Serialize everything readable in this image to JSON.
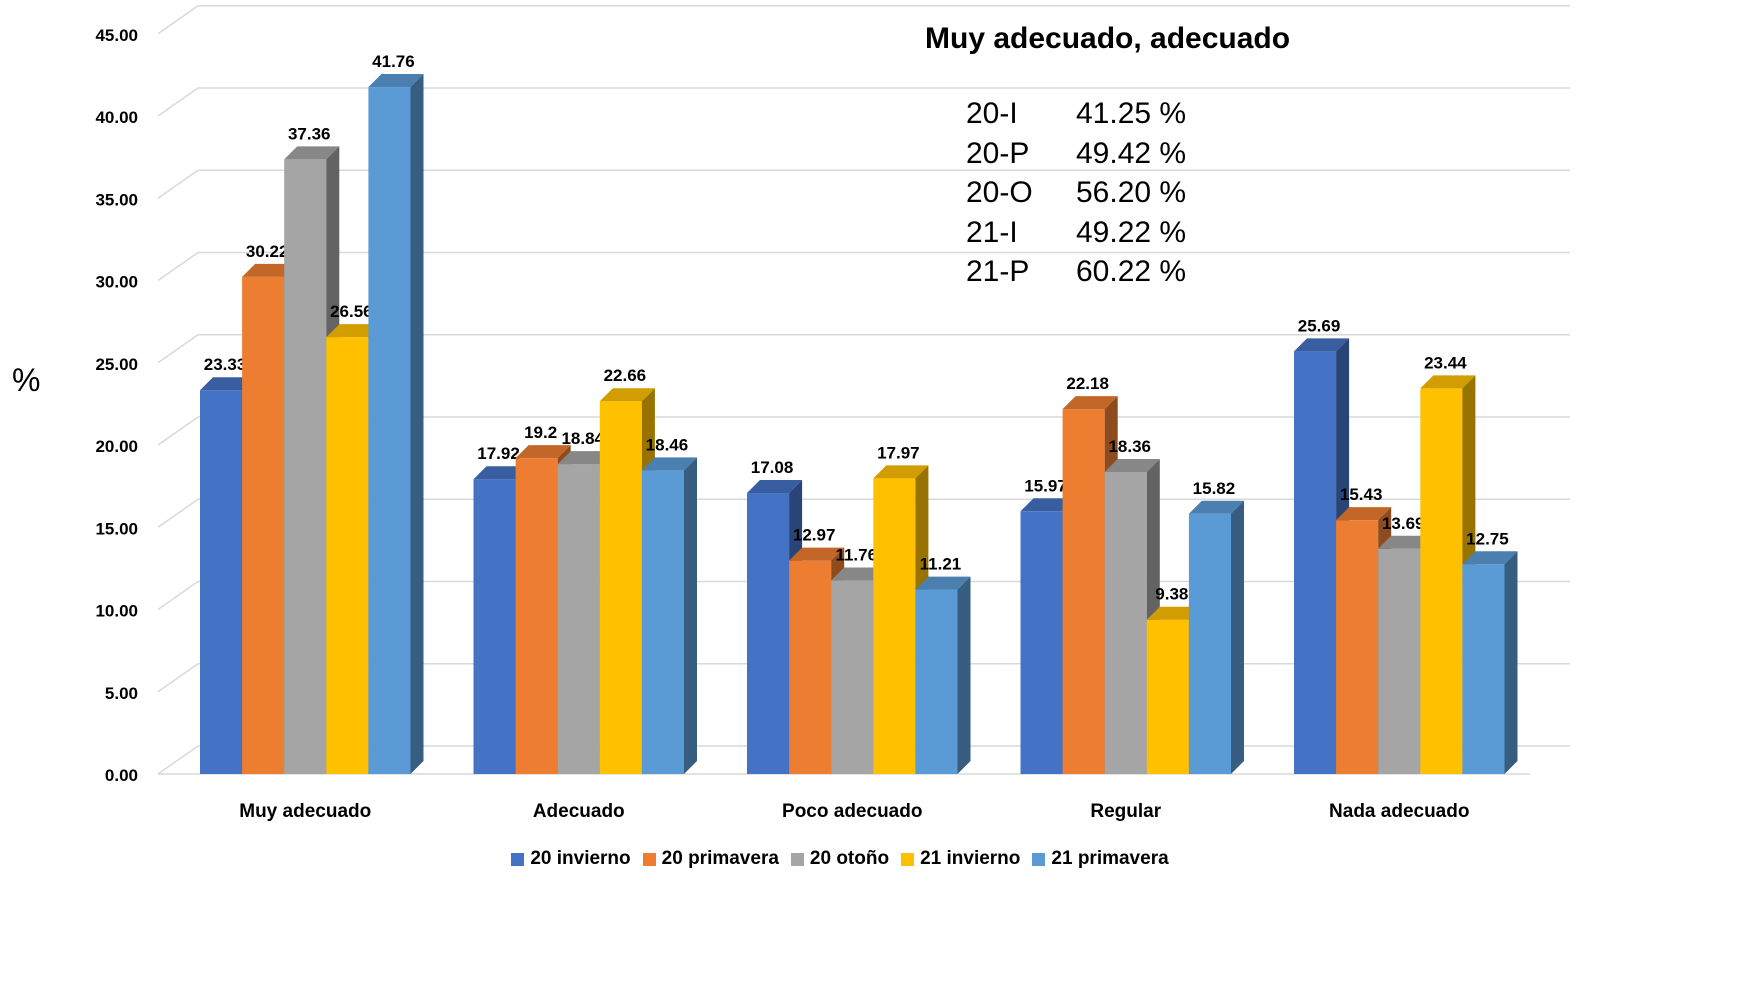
{
  "chart_data": {
    "type": "bar",
    "title": "",
    "xlabel": "",
    "ylabel": "%",
    "ylim": [
      0,
      45
    ],
    "ytick_labels": [
      "0.00",
      "5.00",
      "10.00",
      "15.00",
      "20.00",
      "25.00",
      "30.00",
      "35.00",
      "40.00",
      "45.00"
    ],
    "categories": [
      "Muy adecuado",
      "Adecuado",
      "Poco adecuado",
      "Regular",
      "Nada adecuado"
    ],
    "series": [
      {
        "name": "20 invierno",
        "color": "#4472C4",
        "values": [
          23.33,
          17.92,
          17.08,
          15.97,
          25.69
        ],
        "labels": [
          "23.33",
          "17.92",
          "17.08",
          "15.97",
          "25.69"
        ]
      },
      {
        "name": "20 primavera",
        "color": "#ED7D31",
        "values": [
          30.22,
          19.2,
          12.97,
          22.18,
          15.43
        ],
        "labels": [
          "30.22",
          "19.2",
          "12.97",
          "22.18",
          "15.43"
        ]
      },
      {
        "name": "20 otoño",
        "color": "#A5A5A5",
        "values": [
          37.36,
          18.84,
          11.76,
          18.36,
          13.69
        ],
        "labels": [
          "37.36",
          "18.84",
          "11.76",
          "18.36",
          "13.69"
        ]
      },
      {
        "name": "21 invierno",
        "color": "#FFC000",
        "values": [
          26.56,
          22.66,
          17.97,
          9.38,
          23.44
        ],
        "labels": [
          "26.56",
          "22.66",
          "17.97",
          "9.38",
          "23.44"
        ]
      },
      {
        "name": "21 primavera",
        "color": "#5B9BD5",
        "values": [
          41.76,
          18.46,
          11.21,
          15.82,
          12.75
        ],
        "labels": [
          "41.76",
          "18.46",
          "11.21",
          "15.82",
          "12.75"
        ]
      }
    ],
    "grid": true,
    "legend_position": "bottom",
    "style": "3d-clustered-column"
  },
  "annotation": {
    "title": "Muy adecuado, adecuado",
    "rows": [
      {
        "key": "20-I",
        "value": "41.25 %"
      },
      {
        "key": "20-P",
        "value": "49.42 %"
      },
      {
        "key": "20-O",
        "value": "56.20  %"
      },
      {
        "key": "21-I",
        "value": "49.22 %"
      },
      {
        "key": "21-P",
        "value": "60.22 %"
      }
    ]
  }
}
